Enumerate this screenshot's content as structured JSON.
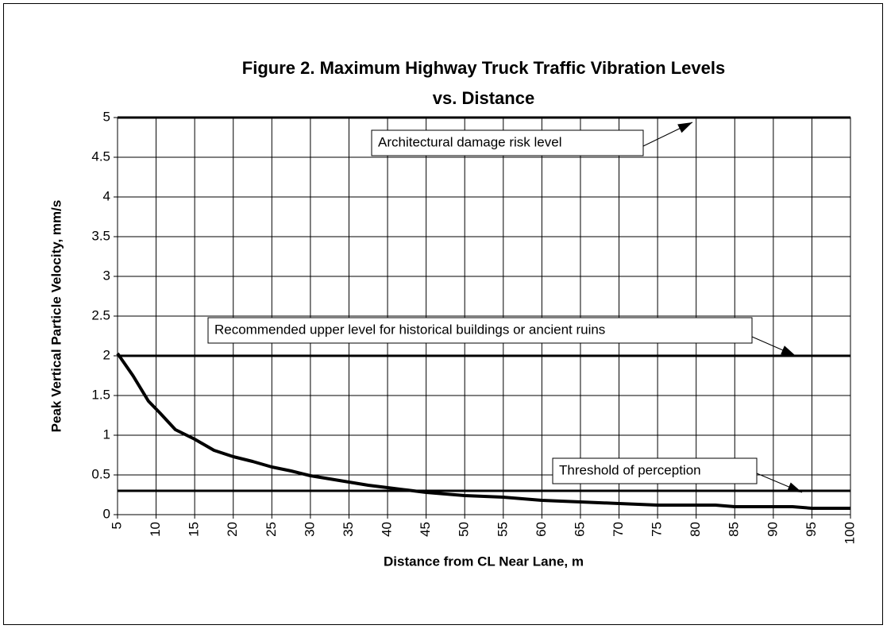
{
  "chart_data": {
    "type": "line",
    "title": [
      "Figure 2.  Maximum Highway Truck Traffic Vibration Levels",
      "vs. Distance"
    ],
    "x_label": "Distance from CL Near Lane, m",
    "y_label": "Peak Vertical Particle Velocity, mm/s",
    "xlim": [
      5,
      100
    ],
    "xticks": [
      5,
      10,
      15,
      20,
      25,
      30,
      35,
      40,
      45,
      50,
      55,
      60,
      65,
      70,
      75,
      80,
      85,
      90,
      95,
      100
    ],
    "ylim": [
      0,
      5
    ],
    "yticks": [
      0,
      0.5,
      1,
      1.5,
      2,
      2.5,
      3,
      3.5,
      4,
      4.5,
      5
    ],
    "grid": true,
    "series": [
      {
        "color": "#000000",
        "x": [
          5,
          7,
          9,
          10.5,
          12.5,
          15,
          17.5,
          20,
          22.5,
          25,
          27.5,
          30,
          32.5,
          35,
          37.5,
          40,
          42.5,
          45,
          47.5,
          50,
          55,
          60,
          65,
          70,
          75,
          80,
          82.5,
          85,
          90,
          92.5,
          95,
          100
        ],
        "values": [
          2.03,
          1.75,
          1.43,
          1.28,
          1.07,
          0.95,
          0.81,
          0.73,
          0.67,
          0.6,
          0.55,
          0.49,
          0.45,
          0.41,
          0.37,
          0.34,
          0.31,
          0.28,
          0.26,
          0.24,
          0.22,
          0.18,
          0.16,
          0.14,
          0.12,
          0.12,
          0.12,
          0.1,
          0.1,
          0.1,
          0.08,
          0.08
        ]
      }
    ],
    "reference_lines": [
      {
        "value": 5,
        "label": "Architectural damage risk level"
      },
      {
        "value": 2,
        "label": "Recommended upper level for historical buildings or ancient ruins"
      },
      {
        "value": 0.3,
        "label": "Threshold of perception"
      }
    ]
  }
}
